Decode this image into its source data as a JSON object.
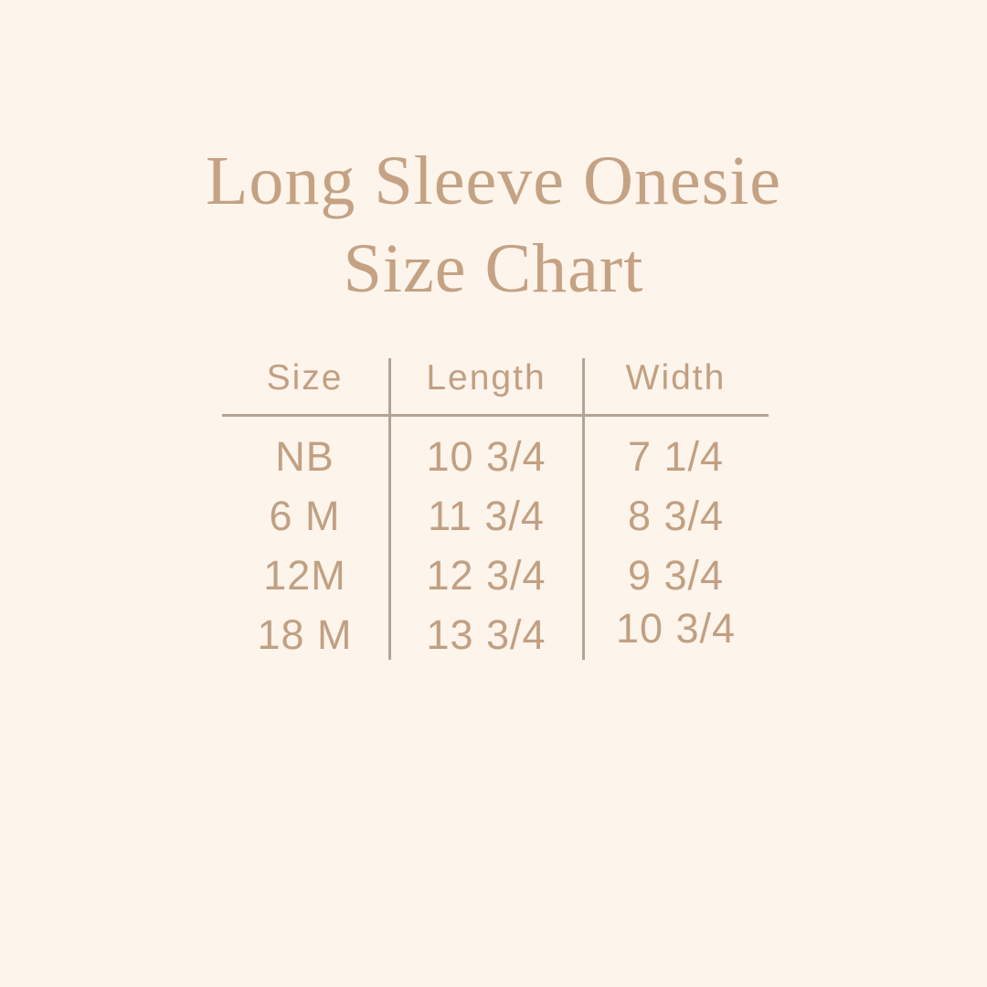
{
  "page": {
    "background_color": "#fdf4ec",
    "title_color": "#c4a283",
    "table_text_color": "#c1a082",
    "table_line_color": "#b4a494"
  },
  "title": {
    "line1": "Long Sleeve Onesie",
    "line2": "Size Chart"
  },
  "chart_data": {
    "type": "table",
    "title": "Long Sleeve Onesie Size Chart",
    "columns": [
      "Size",
      "Length",
      "Width"
    ],
    "rows": [
      [
        "NB",
        "10 3/4",
        "7 1/4"
      ],
      [
        "6 M",
        "11 3/4",
        "8 3/4"
      ],
      [
        "12M",
        "12 3/4",
        "9 3/4"
      ],
      [
        "18 M",
        "13 3/4",
        "10 3/4"
      ]
    ],
    "layout": {
      "grid": "header divider line and two vertical column dividers",
      "legend": "none",
      "units_shown": false
    }
  }
}
